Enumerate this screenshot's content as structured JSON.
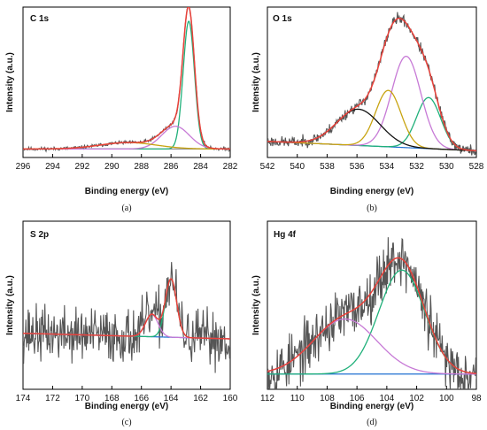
{
  "colors": {
    "raw": "#555555",
    "envelope": "#e8413a",
    "green": "#20b07a",
    "violet": "#c77ad6",
    "yellow": "#c8a411",
    "black": "#111111",
    "blue": "#1f6fd1",
    "baseline_gray": "#8e8e8e"
  },
  "chart_data": [
    {
      "id": "a",
      "type": "line",
      "title": "C 1s",
      "panel_label": "(a)",
      "xlabel": "Binding energy (eV)",
      "ylabel": "Intensity (a.u.)",
      "xlim": [
        296,
        282
      ],
      "x_reversed": true,
      "ylim": [
        -0.06,
        1.0
      ],
      "xticks": [
        296,
        294,
        292,
        290,
        288,
        286,
        284,
        282
      ],
      "baseline": {
        "x": [
          296.0,
          282.0
        ],
        "y": [
          0.0,
          0.0
        ]
      },
      "peaks": [
        {
          "center": 284.8,
          "height": 0.9,
          "fwhm": 0.9,
          "color_key": "green"
        },
        {
          "center": 285.7,
          "height": 0.16,
          "fwhm": 2.2,
          "color_key": "violet"
        },
        {
          "center": 288.9,
          "height": 0.045,
          "fwhm": 4.5,
          "color_key": "yellow"
        }
      ],
      "noise": 0.006
    },
    {
      "id": "b",
      "type": "line",
      "title": "O 1s",
      "panel_label": "(b)",
      "xlabel": "Binding energy (eV)",
      "ylabel": "Intensity (a.u.)",
      "xlim": [
        542,
        528
      ],
      "x_reversed": true,
      "ylim": [
        -0.12,
        1.0
      ],
      "xticks": [
        542,
        540,
        538,
        536,
        534,
        532,
        530,
        528
      ],
      "baseline": {
        "x": [
          542.0,
          528.0
        ],
        "y": [
          0.0,
          -0.07
        ]
      },
      "peaks": [
        {
          "center": 531.2,
          "height": 0.38,
          "fwhm": 1.9,
          "color_key": "green"
        },
        {
          "center": 532.7,
          "height": 0.68,
          "fwhm": 2.3,
          "color_key": "violet"
        },
        {
          "center": 533.9,
          "height": 0.42,
          "fwhm": 2.0,
          "color_key": "yellow"
        },
        {
          "center": 535.9,
          "height": 0.27,
          "fwhm": 3.4,
          "color_key": "black"
        }
      ],
      "noise": 0.02
    },
    {
      "id": "c",
      "type": "line",
      "title": "S 2p",
      "panel_label": "(c)",
      "xlabel": "Binding energy (eV)",
      "ylabel": "Intensity (a.u.)",
      "xlim": [
        174,
        160
      ],
      "x_reversed": true,
      "ylim": [
        -0.5,
        1.0
      ],
      "xticks": [
        174,
        172,
        170,
        168,
        166,
        164,
        162,
        160
      ],
      "baseline": {
        "x": [
          174.0,
          160.0
        ],
        "y": [
          0.0,
          -0.05
        ]
      },
      "peaks": [
        {
          "center": 164.0,
          "height": 0.52,
          "fwhm": 0.9,
          "color_key": "green"
        },
        {
          "center": 165.3,
          "height": 0.2,
          "fwhm": 1.0,
          "color_key": "violet"
        }
      ],
      "noise": 0.12
    },
    {
      "id": "d",
      "type": "line",
      "title": "Hg 4f",
      "panel_label": "(d)",
      "xlabel": "Binding energy (eV)",
      "ylabel": "Intensity (a.u.)",
      "xlim": [
        112,
        98
      ],
      "x_reversed": true,
      "ylim": [
        -0.1,
        1.0
      ],
      "xticks": [
        112,
        110,
        108,
        106,
        104,
        102,
        100,
        98
      ],
      "baseline": {
        "x": [
          112.0,
          98.0
        ],
        "y": [
          0.0,
          0.0
        ]
      },
      "peaks": [
        {
          "center": 103.0,
          "height": 0.68,
          "fwhm": 3.6,
          "color_key": "green"
        },
        {
          "center": 106.8,
          "height": 0.36,
          "fwhm": 5.0,
          "color_key": "violet"
        }
      ],
      "noise": 0.09
    }
  ]
}
